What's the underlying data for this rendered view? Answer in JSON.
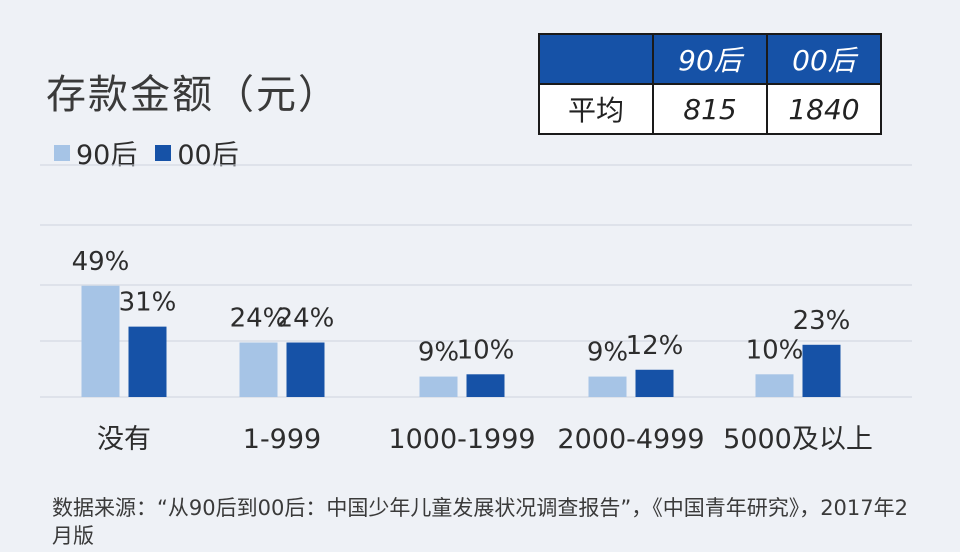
{
  "title": "存款金额（元）",
  "legend": [
    {
      "label": "90后",
      "color": "#a6c4e6"
    },
    {
      "label": "00后",
      "color": "#1652a7"
    }
  ],
  "summary_table": {
    "header": [
      "",
      "90后",
      "00后"
    ],
    "row_label": "平均",
    "values": [
      "815",
      "1840"
    ]
  },
  "chart_data": {
    "type": "bar",
    "categories": [
      "没有",
      "1-999",
      "1000-1999",
      "2000-4999",
      "5000及以上"
    ],
    "series": [
      {
        "name": "90后",
        "values": [
          49,
          24,
          9,
          9,
          10
        ],
        "labels": [
          "49%",
          "24%",
          "9%",
          "9%",
          "10%"
        ],
        "color": "#a6c4e6"
      },
      {
        "name": "00后",
        "values": [
          31,
          24,
          10,
          12,
          23
        ],
        "labels": [
          "31%",
          "24%",
          "10%",
          "12%",
          "23%"
        ],
        "color": "#1652a7"
      }
    ],
    "ylim": [
      0,
      100
    ],
    "grid": true,
    "legend_position": "top-left"
  },
  "source": "数据来源：“从90后到00后：中国少年儿童发展状况调查报告”，《中国青年研究》，2017年2月版"
}
